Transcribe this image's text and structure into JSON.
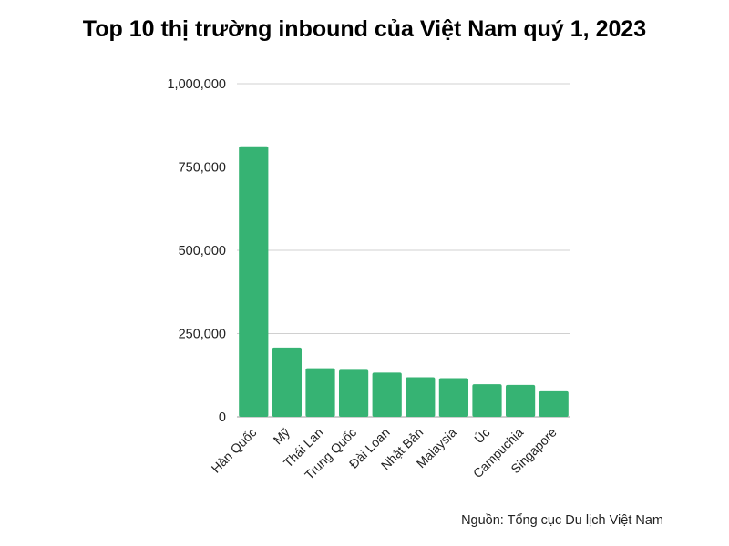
{
  "title": "Top 10 thị trường inbound của Việt Nam quý 1, 2023",
  "source": "Nguồn: Tổng cục Du lịch Việt Nam",
  "colors": {
    "bar": "#36b373",
    "grid": "#d0d0d0",
    "axis": "#bdbdbd"
  },
  "chart_data": {
    "type": "bar",
    "categories": [
      "Hàn Quốc",
      "Mỹ",
      "Thái Lan",
      "Trung Quốc",
      "Đài Loan",
      "Nhật Bản",
      "Malaysia",
      "Úc",
      "Campuchia",
      "Singapore"
    ],
    "values": [
      812000,
      208000,
      146000,
      141000,
      133000,
      119000,
      116000,
      98000,
      96000,
      77000
    ],
    "yticks": [
      0,
      250000,
      500000,
      750000,
      1000000
    ],
    "ytick_labels": [
      "0",
      "250,000",
      "500,000",
      "750,000",
      "1,000,000"
    ],
    "ylim": [
      0,
      1000000
    ],
    "grid": true,
    "legend": "none"
  }
}
